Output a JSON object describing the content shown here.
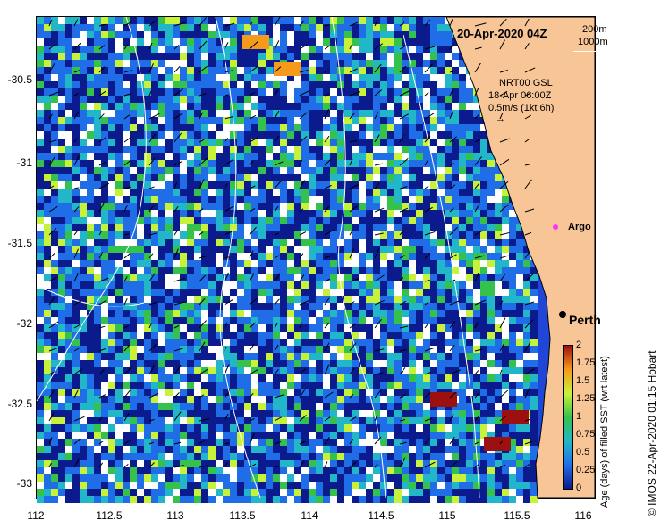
{
  "map": {
    "title": "20-Apr-2020 04Z",
    "depth_legend": [
      "200m",
      "1000m"
    ],
    "current_legend": [
      "NRT00 GSL",
      "18-Apr 06:00Z",
      "0.5m/s (1kt 6h)"
    ],
    "argo_label": "Argo",
    "city_label": "Perth",
    "colors": {
      "land": "#f8c596",
      "ocean_low": "#0b1a8c",
      "ocean_mid": "#1f6ee8",
      "ocean_cyan": "#22b7c8",
      "ocean_green": "#34c24d",
      "ocean_lime": "#c8f23a",
      "ocean_orange": "#f59a1b",
      "ocean_red": "#9d1010",
      "argo": "#ff33ff"
    }
  },
  "axes": {
    "x_ticks": [
      "112",
      "112.5",
      "113",
      "113.5",
      "114",
      "114.5",
      "115",
      "115.5",
      "116"
    ],
    "y_ticks": [
      "-30.5",
      "-31",
      "-31.5",
      "-32",
      "-32.5",
      "-33"
    ]
  },
  "colorbar": {
    "title": "Age (days) of filled SST (wrt latest)",
    "ticks": [
      "2",
      "1.75",
      "1.5",
      "1.25",
      "1",
      "0.75",
      "0.5",
      "0.25",
      "0"
    ],
    "stops": [
      "#0b1a8c",
      "#1f6ee8",
      "#22b7c8",
      "#34c24d",
      "#c8f23a",
      "#f59a1b",
      "#9d1010"
    ]
  },
  "credit": "© IMOS 22-Apr-2020 01:15 Hobart"
}
